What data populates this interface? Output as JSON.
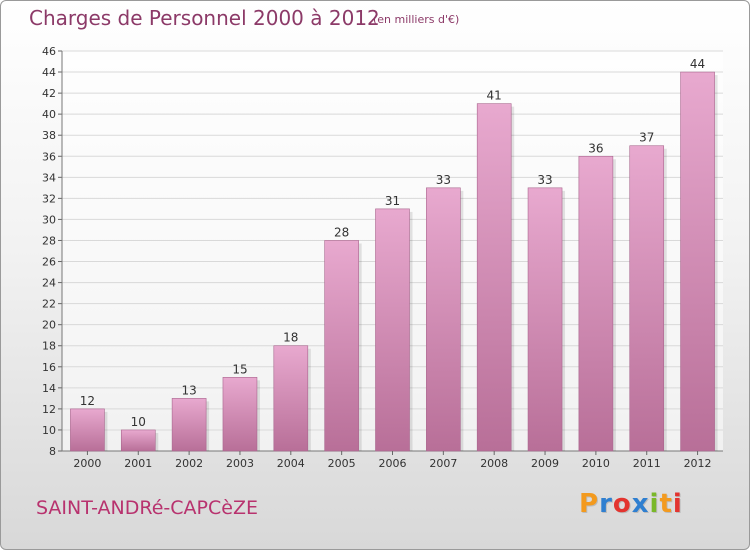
{
  "header": {
    "title": "Charges de Personnel 2000 à 2012",
    "subtitle": "(en milliers d'€)"
  },
  "footer": {
    "commune": "SAINT-ANDRé-CAPCèZE",
    "logo": {
      "letters": [
        "P",
        "r",
        "o",
        "x",
        "i",
        "t",
        "i"
      ],
      "colors": [
        "#f39a1e",
        "#2f7fd0",
        "#e3342f",
        "#2f7fd0",
        "#7ab829",
        "#f39a1e",
        "#e3342f"
      ]
    }
  },
  "colors": {
    "bar_light": "#e8a9cf",
    "bar_dark": "#b86f98",
    "text": "#333333",
    "grid": "#d9d9d9"
  },
  "chart_data": {
    "type": "bar",
    "title": "Charges de Personnel 2000 à 2012",
    "categories": [
      "2000",
      "2001",
      "2002",
      "2003",
      "2004",
      "2005",
      "2006",
      "2007",
      "2008",
      "2009",
      "2010",
      "2011",
      "2012"
    ],
    "values": [
      12,
      10,
      13,
      15,
      18,
      28,
      31,
      33,
      41,
      33,
      36,
      37,
      44
    ],
    "ylim": [
      8,
      46
    ],
    "yticks": [
      8,
      10,
      12,
      14,
      16,
      18,
      20,
      22,
      24,
      26,
      28,
      30,
      32,
      34,
      36,
      38,
      40,
      42,
      44,
      46
    ],
    "grid": true
  }
}
